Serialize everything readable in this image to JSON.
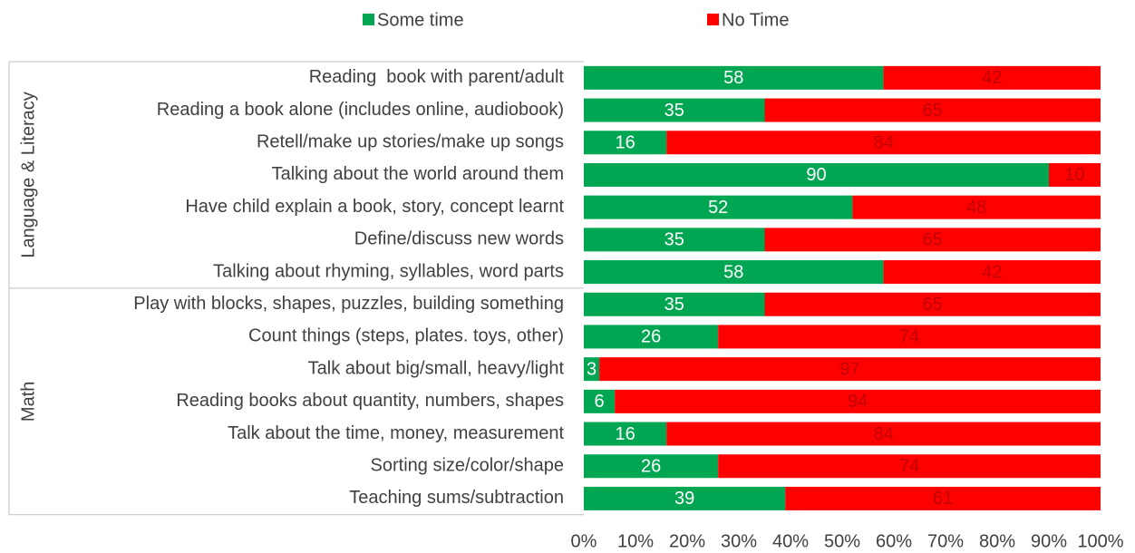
{
  "chart_data": {
    "type": "stacked_barh",
    "groups": [
      {
        "name": "Language & Literacy",
        "categories": [
          "Reading  book with parent/adult",
          "Reading a book alone (includes online, audiobook)",
          "Retell/make up stories/make up songs",
          "Talking about the world around them",
          "Have child explain a book, story, concept learnt",
          "Define/discuss new words",
          "Talking about rhyming, syllables, word parts"
        ]
      },
      {
        "name": "Math",
        "categories": [
          "Play with blocks, shapes, puzzles, building something",
          "Count things (steps, plates. toys, other)",
          "Talk about big/small, heavy/light",
          "Reading books about quantity, numbers, shapes",
          "Talk about the time, money, measurement",
          "Sorting size/color/shape",
          "Teaching sums/subtraction"
        ]
      }
    ],
    "series": [
      {
        "name": "Some time",
        "color": "#00a651",
        "label_color": "#ffffff",
        "values": [
          58,
          35,
          16,
          90,
          52,
          35,
          58,
          35,
          26,
          3,
          6,
          16,
          26,
          39
        ]
      },
      {
        "name": "No Time",
        "color": "#ff0000",
        "label_color": "#c00000",
        "values": [
          42,
          65,
          84,
          10,
          48,
          65,
          42,
          65,
          74,
          97,
          94,
          84,
          74,
          61
        ]
      }
    ],
    "xlim": [
      0,
      100
    ],
    "xticks": [
      {
        "value": 0,
        "label": "0%"
      },
      {
        "value": 10,
        "label": "10%"
      },
      {
        "value": 20,
        "label": "20%"
      },
      {
        "value": 30,
        "label": "30%"
      },
      {
        "value": 40,
        "label": "40%"
      },
      {
        "value": 50,
        "label": "50%"
      },
      {
        "value": 60,
        "label": "60%"
      },
      {
        "value": 70,
        "label": "70%"
      },
      {
        "value": 80,
        "label": "80%"
      },
      {
        "value": 90,
        "label": "90%"
      },
      {
        "value": 100,
        "label": "100%"
      }
    ],
    "legend": "top"
  }
}
